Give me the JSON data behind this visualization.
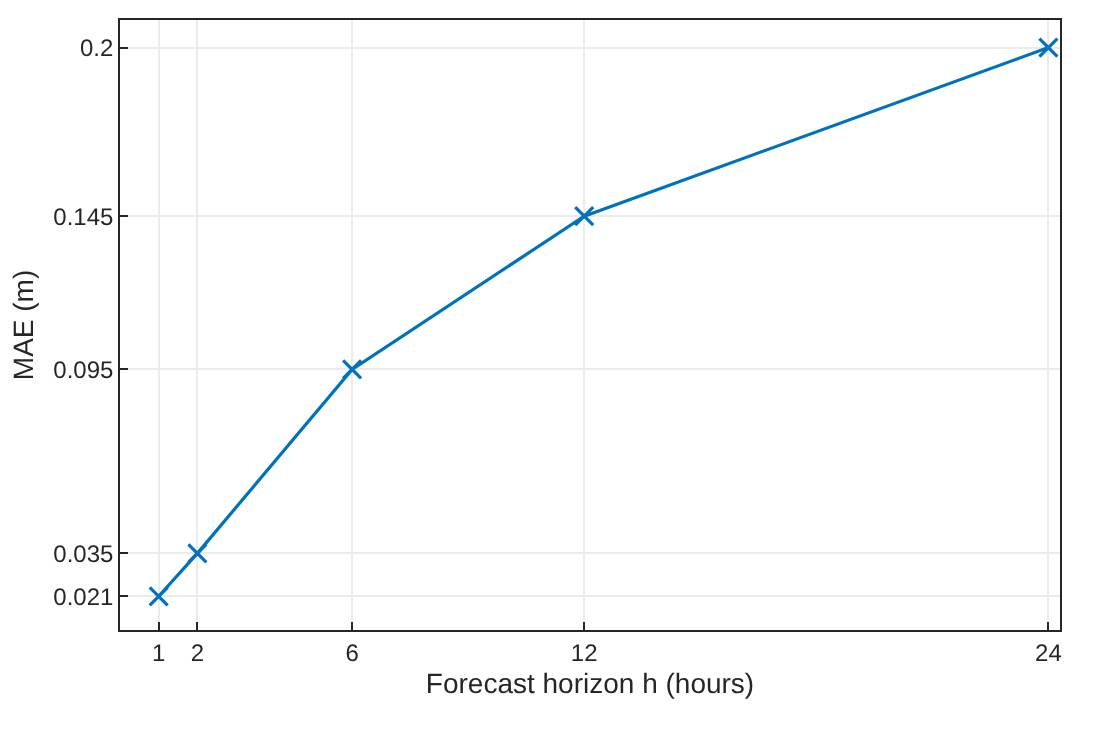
{
  "chart_data": {
    "type": "line",
    "xlabel": "Forecast horizon h (hours)",
    "ylabel": "MAE (m)",
    "x": [
      1,
      2,
      6,
      12,
      24
    ],
    "series": [
      {
        "color": "#0072bd",
        "values": [
          0.021,
          0.035,
          0.095,
          0.145,
          0.2
        ]
      }
    ],
    "xlim": [
      0,
      24.3
    ],
    "xticks": [
      1,
      2,
      6,
      12,
      24
    ],
    "ylim": [
      0.01,
      0.209
    ],
    "yticks": [
      0.021,
      0.035,
      0.095,
      0.145,
      0.2
    ],
    "grid": true,
    "marker": "cross",
    "line_style": "solid",
    "legend": false
  }
}
